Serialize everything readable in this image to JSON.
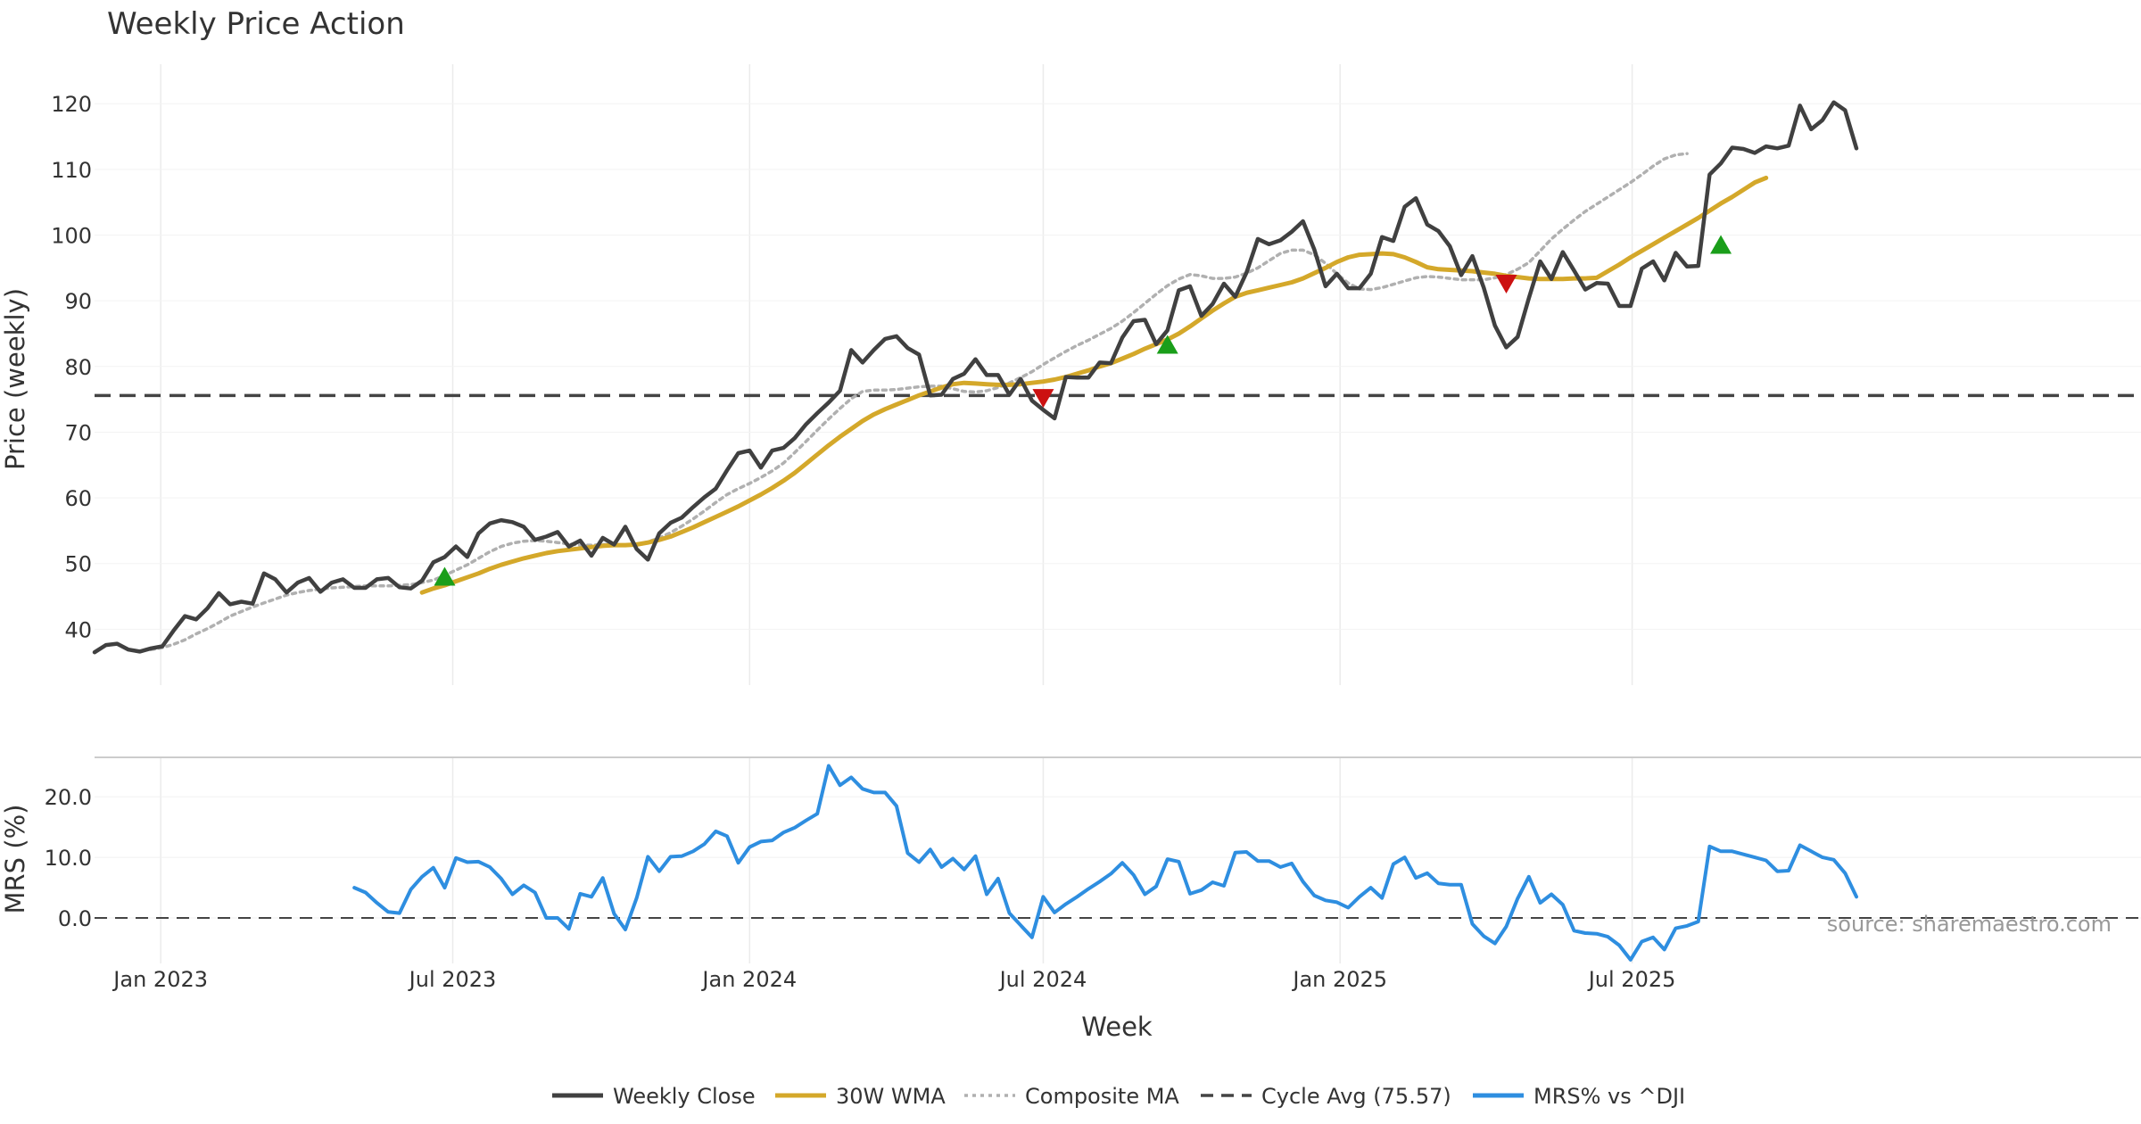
{
  "chart_data": {
    "type": "line",
    "title": "Weekly Price Action",
    "xlabel": "Week",
    "source_note": "source: sharemaestro.com",
    "x_range": [
      "2022-11-21",
      "2025-11-21"
    ],
    "x_ticks": [
      {
        "date": "2023-01-01",
        "label": "Jan 2023"
      },
      {
        "date": "2023-07-01",
        "label": "Jul 2023"
      },
      {
        "date": "2024-01-01",
        "label": "Jan 2024"
      },
      {
        "date": "2024-07-01",
        "label": "Jul 2024"
      },
      {
        "date": "2025-01-01",
        "label": "Jan 2025"
      },
      {
        "date": "2025-07-01",
        "label": "Jul 2025"
      }
    ],
    "price_panel": {
      "ylabel": "Price (weekly)",
      "ylim": [
        31.5,
        126
      ],
      "y_ticks": [
        {
          "value": 40,
          "label": "40"
        },
        {
          "value": 50,
          "label": "50"
        },
        {
          "value": 60,
          "label": "60"
        },
        {
          "value": 70,
          "label": "70"
        },
        {
          "value": 80,
          "label": "80"
        },
        {
          "value": 90,
          "label": "90"
        },
        {
          "value": 100,
          "label": "100"
        },
        {
          "value": 110,
          "label": "110"
        },
        {
          "value": 120,
          "label": "120"
        }
      ],
      "series": [
        {
          "name": "Weekly Close",
          "color": "#404040",
          "style": "solid",
          "start_week": 0,
          "values": [
            36.5,
            37.6,
            37.8,
            36.9,
            36.6,
            37.1,
            37.4,
            39.8,
            42,
            41.5,
            43.2,
            45.5,
            43.8,
            44.2,
            43.9,
            48.5,
            47.6,
            45.6,
            47.1,
            47.8,
            45.7,
            47.1,
            47.6,
            46.3,
            46.3,
            47.6,
            47.8,
            46.4,
            46.2,
            47.4,
            50.2,
            51,
            52.6,
            51,
            54.6,
            56.1,
            56.6,
            56.3,
            55.6,
            53.6,
            54.1,
            54.8,
            52.6,
            53.5,
            51.2,
            53.9,
            52.9,
            55.6,
            52.2,
            50.6,
            54.6,
            56.2,
            57,
            58.6,
            60.1,
            61.4,
            64.2,
            66.8,
            67.2,
            64.6,
            67.2,
            67.6,
            69.1,
            71.2,
            72.9,
            74.5,
            76.3,
            82.5,
            80.6,
            82.5,
            84.2,
            84.6,
            82.8,
            81.8,
            75.6,
            75.7,
            78.1,
            78.9,
            81.1,
            78.7,
            78.7,
            75.7,
            78.1,
            74.8,
            73.4,
            72.1,
            78.4,
            78.3,
            78.3,
            80.6,
            80.5,
            84.4,
            86.9,
            87.1,
            83.4,
            85.5,
            91.6,
            92.2,
            87.7,
            89.5,
            92.6,
            90.6,
            94.3,
            99.4,
            98.6,
            99.2,
            100.5,
            102.1,
            97.8,
            92.2,
            94.1,
            91.9,
            91.9,
            94.1,
            99.7,
            99.1,
            104.3,
            105.6,
            101.6,
            100.6,
            98.3,
            93.9,
            96.8,
            92,
            86.2,
            82.9,
            84.5,
            90.4,
            96,
            93.3,
            97.4,
            94.6,
            91.7,
            92.7,
            92.6,
            89.2,
            89.2,
            94.9,
            96,
            93.1,
            97.3,
            95.2,
            95.3,
            109.2,
            110.9,
            113.3,
            113.1,
            112.5,
            113.5,
            113.2,
            113.6,
            119.7,
            116.1,
            117.5,
            120.2,
            119,
            113.2
          ]
        },
        {
          "name": "30W WMA",
          "color": "#d4a82a",
          "style": "solid",
          "start_week": 29,
          "values": [
            45.6,
            46.2,
            46.7,
            47.3,
            47.9,
            48.5,
            49.2,
            49.8,
            50.3,
            50.8,
            51.2,
            51.6,
            51.9,
            52.1,
            52.3,
            52.5,
            52.7,
            52.8,
            52.8,
            52.9,
            53.2,
            53.6,
            54.1,
            54.8,
            55.5,
            56.3,
            57.1,
            57.9,
            58.7,
            59.6,
            60.5,
            61.5,
            62.6,
            63.8,
            65.2,
            66.6,
            68.0,
            69.3,
            70.5,
            71.7,
            72.7,
            73.5,
            74.2,
            74.9,
            75.6,
            76.2,
            76.8,
            77.3,
            77.5,
            77.4,
            77.3,
            77.2,
            77.2,
            77.3,
            77.5,
            77.7,
            78.0,
            78.4,
            78.9,
            79.4,
            80.0,
            80.5,
            81.2,
            81.9,
            82.7,
            83.4,
            84.1,
            85.0,
            86.1,
            87.3,
            88.5,
            89.6,
            90.6,
            91.2,
            91.6,
            92.0,
            92.4,
            92.8,
            93.4,
            94.2,
            95.0,
            95.9,
            96.6,
            97.0,
            97.1,
            97.2,
            97.1,
            96.6,
            95.9,
            95.1,
            94.8,
            94.7,
            94.6,
            94.5,
            94.3,
            94.1,
            93.8,
            93.6,
            93.4,
            93.3,
            93.3,
            93.3,
            93.4,
            93.4,
            93.5,
            94.5,
            95.5,
            96.6,
            97.6,
            98.6,
            99.6,
            100.6,
            101.6,
            102.6,
            103.7,
            104.8,
            105.8,
            106.9,
            108.0,
            108.7
          ]
        },
        {
          "name": "Composite MA",
          "color": "#b0b0b0",
          "style": "dotted",
          "start_week": 5,
          "values": [
            36.9,
            37.2,
            37.7,
            38.4,
            39.3,
            40.1,
            41.0,
            42.0,
            42.7,
            43.4,
            44.0,
            44.6,
            45.2,
            45.6,
            45.9,
            46.1,
            46.3,
            46.4,
            46.5,
            46.6,
            46.6,
            46.6,
            46.7,
            46.8,
            47.1,
            47.5,
            48.2,
            49.0,
            49.8,
            50.8,
            51.8,
            52.6,
            53.1,
            53.4,
            53.5,
            53.4,
            53.2,
            53.0,
            52.8,
            52.8,
            52.9,
            52.9,
            52.8,
            52.9,
            53.3,
            53.9,
            54.7,
            55.7,
            56.8,
            58.0,
            59.3,
            60.5,
            61.4,
            62.2,
            63.1,
            64.1,
            65.3,
            66.9,
            68.6,
            70.3,
            72.0,
            73.6,
            75.1,
            76.2,
            76.4,
            76.4,
            76.5,
            76.7,
            76.9,
            77.0,
            77.0,
            76.6,
            76.2,
            76.1,
            76.3,
            76.8,
            77.5,
            78.3,
            79.2,
            80.3,
            81.3,
            82.3,
            83.2,
            84.0,
            84.9,
            85.8,
            86.9,
            88.2,
            89.6,
            91.0,
            92.3,
            93.3,
            94.0,
            93.8,
            93.4,
            93.4,
            93.6,
            94.2,
            95.0,
            96.1,
            97.2,
            97.7,
            97.7,
            97.0,
            95.7,
            94.1,
            92.7,
            91.8,
            91.7,
            92.0,
            92.5,
            93.0,
            93.5,
            93.7,
            93.6,
            93.4,
            93.2,
            93.2,
            93.2,
            93.5,
            94.0,
            94.8,
            95.8,
            97.6,
            99.4,
            100.9,
            102.3,
            103.6,
            104.7,
            105.8,
            106.9,
            108.0,
            109.2,
            110.5,
            111.6,
            112.2,
            112.4
          ]
        }
      ],
      "reference_line": {
        "name": "Cycle Avg (75.57)",
        "value": 75.57,
        "color": "#444444",
        "style": "dashed"
      },
      "buy_markers": [
        {
          "week": 31,
          "value": 48.0
        },
        {
          "week": 95,
          "value": 83.3
        },
        {
          "week": 144,
          "value": 98.5
        }
      ],
      "sell_markers": [
        {
          "week": 84,
          "value": 75.2
        },
        {
          "week": 125,
          "value": 92.6
        }
      ],
      "marker_colors": {
        "buy": "#1a9e1a",
        "sell": "#cc1111"
      }
    },
    "mrs_panel": {
      "ylabel": "MRS (%)",
      "ylim": [
        -7.5,
        26.5
      ],
      "y_ticks": [
        {
          "value": 0,
          "label": "0.0"
        },
        {
          "value": 10,
          "label": "10.0"
        },
        {
          "value": 20,
          "label": "20.0"
        }
      ],
      "zero_line": {
        "value": 0,
        "color": "#444444",
        "style": "dashed"
      },
      "series": [
        {
          "name": "MRS% vs ^DJI",
          "color": "#2e8ee0",
          "style": "solid",
          "start_week": 23,
          "values": [
            5,
            4.2,
            2.5,
            1,
            0.8,
            4.7,
            6.8,
            8.3,
            5,
            9.9,
            9.2,
            9.3,
            8.4,
            6.5,
            3.9,
            5.4,
            4.2,
            0,
            0,
            -1.8,
            4,
            3.5,
            6.6,
            0.7,
            -1.9,
            3.3,
            10.1,
            7.7,
            10.1,
            10.2,
            11,
            12.2,
            14.3,
            13.5,
            9.1,
            11.7,
            12.6,
            12.8,
            14.1,
            14.9,
            16.1,
            17.2,
            25.1,
            21.9,
            23.2,
            21.3,
            20.7,
            20.7,
            18.5,
            10.7,
            9.2,
            11.3,
            8.4,
            9.8,
            8,
            10.2,
            3.9,
            6.5,
            0.8,
            -1.2,
            -3.2,
            3.5,
            0.9,
            2.3,
            3.5,
            4.8,
            6,
            7.3,
            9.1,
            7.1,
            3.9,
            5.2,
            9.7,
            9.3,
            4,
            4.6,
            5.9,
            5.3,
            10.8,
            10.9,
            9.4,
            9.4,
            8.4,
            9,
            6,
            3.7,
            2.9,
            2.6,
            1.7,
            3.5,
            5,
            3.3,
            8.9,
            10,
            6.6,
            7.4,
            5.7,
            5.5,
            5.5,
            -1,
            -3,
            -4.2,
            -1.4,
            3.2,
            6.8,
            2.5,
            3.9,
            2.2,
            -2.1,
            -2.5,
            -2.6,
            -3.1,
            -4.5,
            -6.9,
            -3.9,
            -3.2,
            -5.2,
            -1.7,
            -1.3,
            -0.6,
            11.8,
            11,
            11,
            10.5,
            10,
            9.5,
            7.7,
            7.8,
            12,
            11,
            10,
            9.6,
            7.4,
            3.5
          ]
        }
      ]
    },
    "legend": [
      {
        "label": "Weekly Close",
        "color": "#404040",
        "style": "solid"
      },
      {
        "label": "30W WMA",
        "color": "#d4a82a",
        "style": "solid"
      },
      {
        "label": "Composite MA",
        "color": "#b0b0b0",
        "style": "dotted"
      },
      {
        "label": "Cycle Avg (75.57)",
        "color": "#444444",
        "style": "dashed"
      },
      {
        "label": "MRS% vs ^DJI",
        "color": "#2e8ee0",
        "style": "solid"
      }
    ]
  }
}
